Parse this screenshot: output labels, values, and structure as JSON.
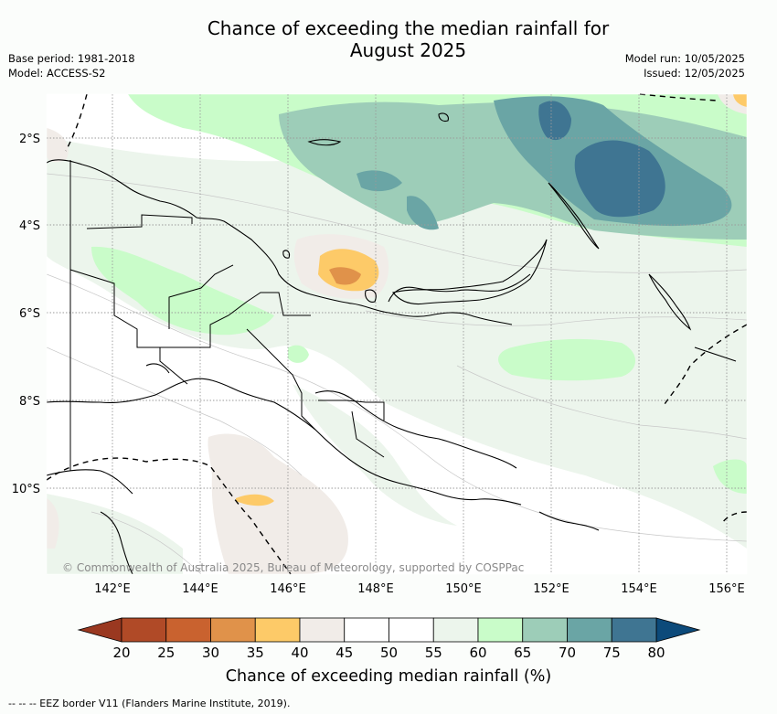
{
  "title_line1": "Chance of exceeding the median rainfall for",
  "title_line2": "August 2025",
  "meta_left": {
    "base_period": "Base period: 1981-2018",
    "model": "Model: ACCESS-S2"
  },
  "meta_right": {
    "model_run": "Model run: 10/05/2025",
    "issued": "Issued: 12/05/2025"
  },
  "credit": "© Commonwealth of Australia 2025, Bureau of Meteorology, supported by COSPPac",
  "lon_labels": [
    "142°E",
    "144°E",
    "146°E",
    "148°E",
    "150°E",
    "152°E",
    "154°E",
    "156°E"
  ],
  "lat_labels": [
    "2°S",
    "4°S",
    "6°S",
    "8°S",
    "10°S"
  ],
  "colorbar": {
    "title": "Chance of exceeding median rainfall (%)",
    "ticks": [
      "20",
      "25",
      "30",
      "35",
      "40",
      "45",
      "50",
      "55",
      "60",
      "65",
      "70",
      "75",
      "80"
    ],
    "colors": [
      "#b04a27",
      "#c9622f",
      "#e0924a",
      "#fdca68",
      "#f1ece8",
      "#ffffff",
      "#ffffff",
      "#ecf5ec",
      "#c9fcc9",
      "#9dcdb8",
      "#6aa5a5",
      "#3f7592"
    ],
    "under_color": "#9a3820",
    "over_color": "#0c4a7a"
  },
  "footer": "--  --  -- EEZ border V11 (Flanders Marine Institute, 2019)."
}
